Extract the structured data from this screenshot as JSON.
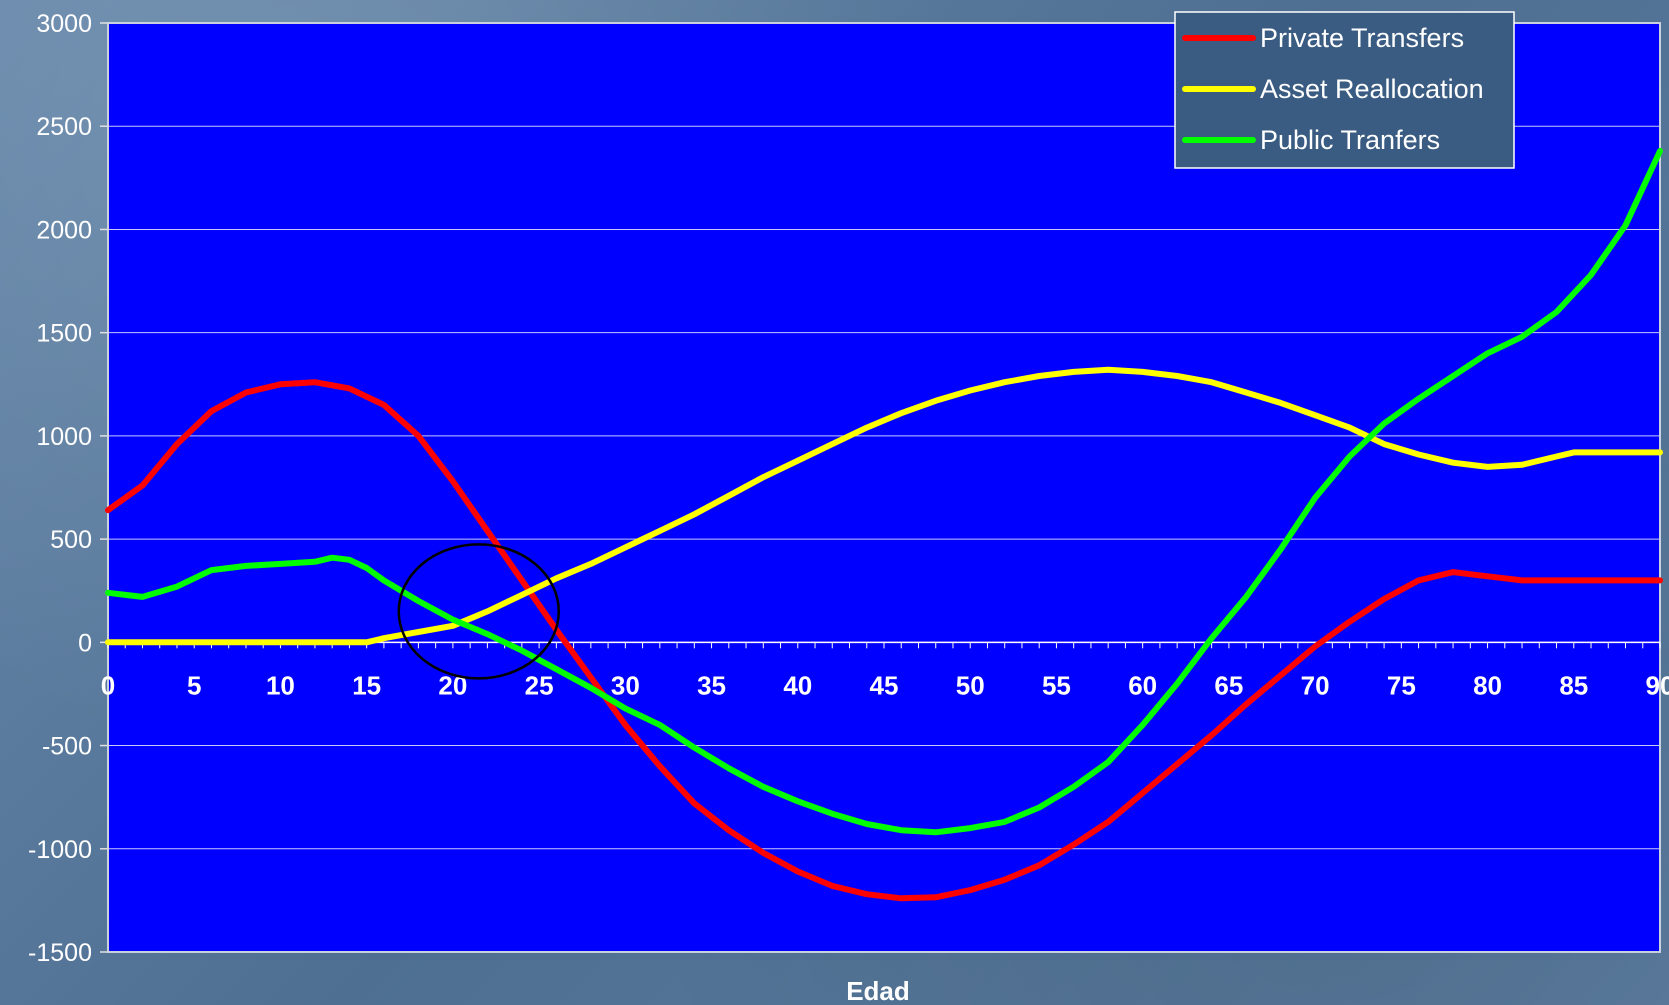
{
  "chart_data": {
    "type": "line",
    "title": "",
    "xlabel": "Edad",
    "ylabel": "",
    "xlim": [
      0,
      90
    ],
    "ylim": [
      -1500,
      3000
    ],
    "y_ticks": [
      3000,
      2500,
      2000,
      1500,
      1000,
      500,
      0,
      -500,
      -1000,
      -1500
    ],
    "x_ticks": [
      0,
      5,
      10,
      15,
      20,
      25,
      30,
      35,
      40,
      45,
      50,
      55,
      60,
      65,
      70,
      75,
      80,
      85,
      90
    ],
    "grid": "horizontal",
    "legend_position": "top-right",
    "plot_background": "#0000ff",
    "annotation": {
      "type": "circle",
      "center": [
        21.5,
        150
      ],
      "note": ""
    },
    "series": [
      {
        "name": "Private Transfers",
        "color": "#ff0000",
        "x": [
          0,
          2,
          4,
          6,
          8,
          10,
          12,
          14,
          16,
          18,
          20,
          22,
          24,
          26,
          28,
          30,
          32,
          34,
          36,
          38,
          40,
          42,
          44,
          46,
          48,
          50,
          52,
          54,
          56,
          58,
          60,
          62,
          64,
          66,
          68,
          70,
          72,
          74,
          76,
          78,
          80,
          82,
          84,
          86,
          88,
          90
        ],
        "values": [
          640,
          760,
          960,
          1120,
          1210,
          1250,
          1260,
          1230,
          1150,
          1000,
          780,
          540,
          300,
          60,
          -170,
          -400,
          -600,
          -780,
          -910,
          -1020,
          -1110,
          -1180,
          -1220,
          -1240,
          -1235,
          -1200,
          -1150,
          -1080,
          -980,
          -870,
          -730,
          -590,
          -450,
          -300,
          -160,
          -20,
          100,
          210,
          300,
          340,
          320,
          300,
          300,
          300,
          300,
          300
        ]
      },
      {
        "name": "Asset Reallocation",
        "color": "#ffff00",
        "x": [
          0,
          5,
          10,
          14,
          15,
          16,
          18,
          20,
          22,
          24,
          26,
          28,
          30,
          32,
          34,
          36,
          38,
          40,
          42,
          44,
          46,
          48,
          50,
          52,
          54,
          56,
          58,
          60,
          62,
          64,
          66,
          68,
          70,
          72,
          74,
          76,
          78,
          80,
          82,
          84,
          85,
          86,
          88,
          90
        ],
        "values": [
          0,
          0,
          0,
          0,
          0,
          20,
          50,
          80,
          150,
          230,
          310,
          380,
          460,
          540,
          620,
          710,
          800,
          880,
          960,
          1040,
          1110,
          1170,
          1220,
          1260,
          1290,
          1310,
          1320,
          1310,
          1290,
          1260,
          1210,
          1160,
          1100,
          1040,
          960,
          910,
          870,
          850,
          860,
          900,
          920,
          920,
          920,
          920
        ]
      },
      {
        "name": "Public Tranfers",
        "color": "#00ff00",
        "x": [
          0,
          2,
          4,
          6,
          8,
          10,
          12,
          13,
          14,
          15,
          16,
          18,
          20,
          22,
          24,
          26,
          28,
          30,
          32,
          34,
          36,
          38,
          40,
          42,
          44,
          46,
          48,
          50,
          52,
          54,
          56,
          58,
          60,
          62,
          64,
          66,
          68,
          70,
          72,
          74,
          76,
          78,
          80,
          82,
          84,
          86,
          88,
          90
        ],
        "values": [
          240,
          220,
          270,
          350,
          370,
          380,
          390,
          410,
          400,
          360,
          300,
          200,
          110,
          40,
          -40,
          -130,
          -220,
          -320,
          -400,
          -510,
          -610,
          -700,
          -770,
          -830,
          -880,
          -910,
          -920,
          -900,
          -870,
          -800,
          -700,
          -580,
          -400,
          -200,
          20,
          220,
          450,
          700,
          900,
          1060,
          1180,
          1290,
          1400,
          1480,
          1600,
          1780,
          2020,
          2380
        ]
      }
    ]
  }
}
